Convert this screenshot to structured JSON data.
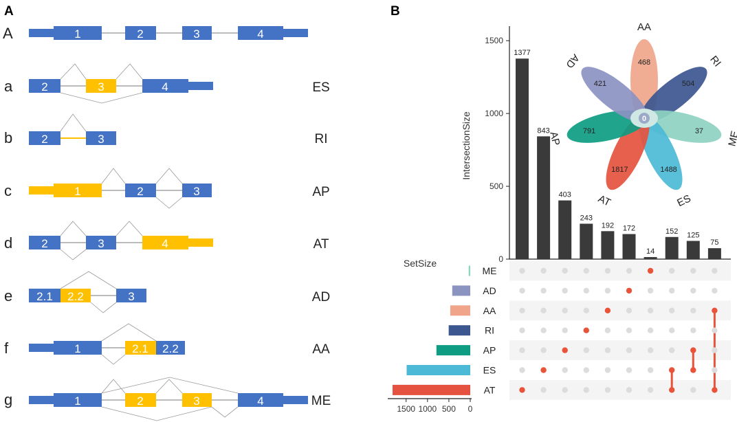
{
  "colors": {
    "exon_blue": "#4472C4",
    "exon_yellow": "#FFC000",
    "bar": "#3a3a3a",
    "dot_active": "#E8533A",
    "dot_inactive": "#DCDCDC",
    "stripe": "#F4F4F4"
  },
  "panel_a": {
    "label": "A",
    "ref_letter": "A",
    "ref_exons": [
      "1",
      "2",
      "3",
      "4"
    ],
    "rows": [
      {
        "letter": "a",
        "code": "ES",
        "exons": [
          "2",
          "3",
          "4"
        ]
      },
      {
        "letter": "b",
        "code": "RI",
        "exons": [
          "2",
          "3"
        ]
      },
      {
        "letter": "c",
        "code": "AP",
        "exons": [
          "1",
          "2",
          "3"
        ]
      },
      {
        "letter": "d",
        "code": "AT",
        "exons": [
          "2",
          "3",
          "4"
        ]
      },
      {
        "letter": "e",
        "code": "AD",
        "exons": [
          "2.1",
          "2.2",
          "3"
        ]
      },
      {
        "letter": "f",
        "code": "AA",
        "exons": [
          "1",
          "2.1",
          "2.2"
        ]
      },
      {
        "letter": "g",
        "code": "ME",
        "exons": [
          "1",
          "2",
          "3",
          "4"
        ]
      }
    ]
  },
  "chart_data": {
    "type": "upset",
    "panel_label": "B",
    "ylabel": "IntersectionSize",
    "ylim": [
      0,
      1600
    ],
    "yticks": [
      0,
      500,
      1000,
      1500
    ],
    "bars": [
      1377,
      843,
      403,
      243,
      192,
      172,
      14,
      152,
      125,
      75
    ],
    "sets": [
      "ME",
      "AD",
      "AA",
      "RI",
      "AP",
      "ES",
      "AT"
    ],
    "set_colors": [
      "#8ED3C1",
      "#8B93C1",
      "#F0A58B",
      "#3C5690",
      "#0E9C82",
      "#4CBAD6",
      "#E5523F"
    ],
    "set_size_title": "SetSize",
    "set_sizes": [
      37,
      421,
      468,
      504,
      791,
      1488,
      1817
    ],
    "set_size_ticks": [
      1500,
      1000,
      500,
      0
    ],
    "matrix": [
      [
        "AT"
      ],
      [
        "ES"
      ],
      [
        "AP"
      ],
      [
        "RI"
      ],
      [
        "AA"
      ],
      [
        "AD"
      ],
      [
        "ME"
      ],
      [
        "ES",
        "AT"
      ],
      [
        "AP",
        "ES"
      ],
      [
        "AA",
        "AT"
      ]
    ],
    "flower": {
      "petals": [
        {
          "name": "AA",
          "count": 468,
          "color": "#F0A58B"
        },
        {
          "name": "RI",
          "count": 504,
          "color": "#3C5690"
        },
        {
          "name": "ME",
          "count": 37,
          "color": "#8ED3C1"
        },
        {
          "name": "ES",
          "count": 1488,
          "color": "#4CBAD6"
        },
        {
          "name": "AT",
          "count": 1817,
          "color": "#E5523F"
        },
        {
          "name": "AP",
          "count": 791,
          "color": "#0E9C82"
        },
        {
          "name": "AD",
          "count": 421,
          "color": "#8B93C1"
        }
      ],
      "center": 0
    }
  }
}
